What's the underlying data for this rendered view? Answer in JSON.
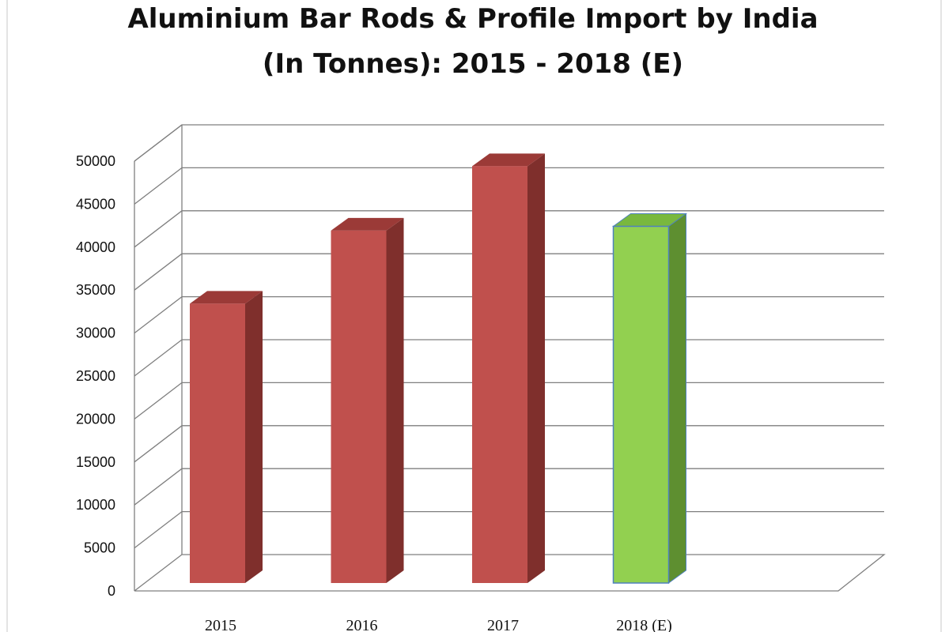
{
  "chart_data": {
    "type": "bar",
    "title_lines": [
      "Aluminium Bar Rods & Profile Import by India",
      "(In Tonnes): 2015 - 2018 (E)"
    ],
    "categories": [
      "2015",
      "2016",
      "2017",
      "2018 (E)"
    ],
    "values": [
      32500,
      41000,
      48500,
      41500
    ],
    "ylim": [
      0,
      50000
    ],
    "yticks": [
      "0",
      "5000",
      "10000",
      "15000",
      "20000",
      "25000",
      "30000",
      "35000",
      "40000",
      "45000",
      "50000"
    ],
    "grid": true,
    "style": "3d-column",
    "colors": {
      "actual_front": "#c0504d",
      "actual_side": "#7f2f2c",
      "actual_top": "#9b3a37",
      "estimate_front": "#92d050",
      "estimate_side": "#5e8f30",
      "estimate_top": "#79b83e",
      "estimate_outline": "#4f81bd",
      "gridline": "#7f7f7f"
    },
    "highlight_category": "2018 (E)"
  }
}
